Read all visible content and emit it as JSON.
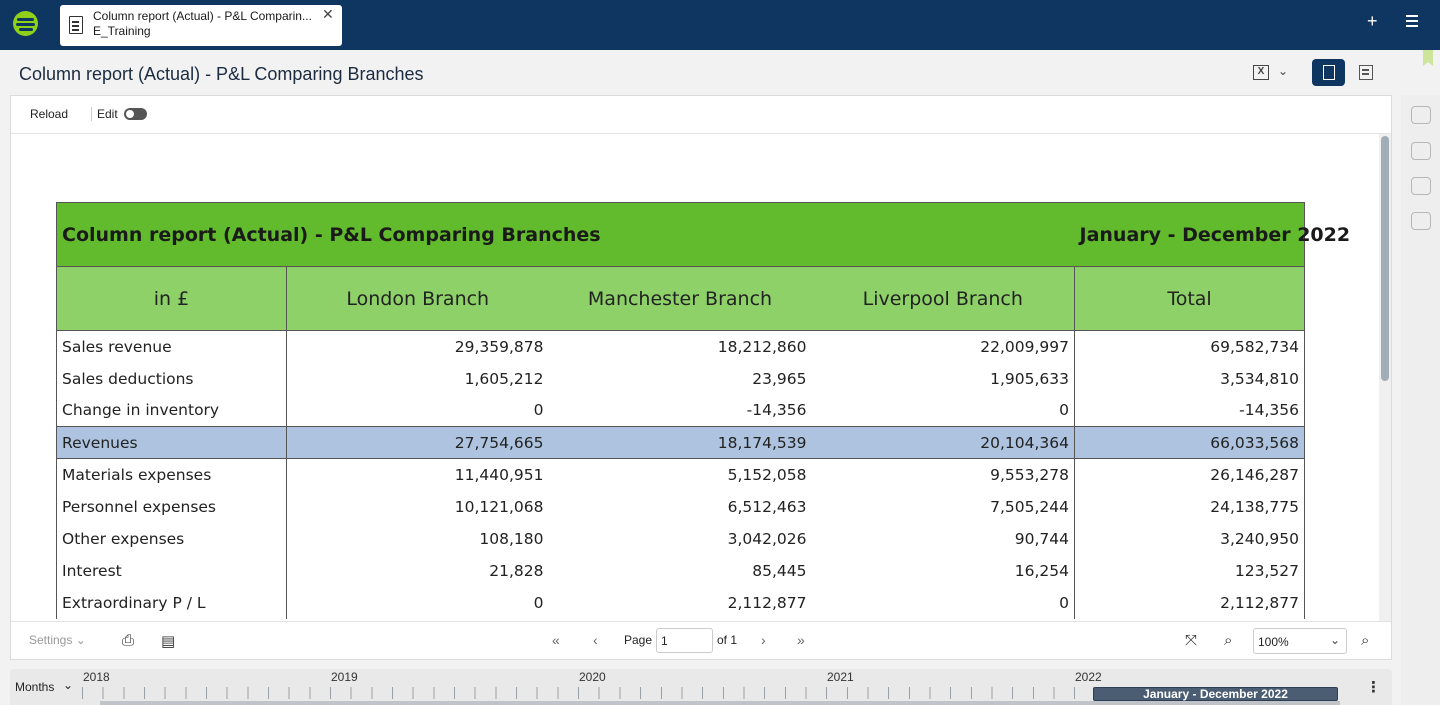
{
  "app": {
    "tab_title": "Column report (Actual) - P&L Comparin...",
    "tab_subtitle": "E_Training",
    "tab_close": "✕",
    "add_label": "+"
  },
  "header": {
    "page_title": "Column report (Actual) - P&L Comparing Branches",
    "excel_glyph": "X",
    "chevron": "⌄"
  },
  "toolbar": {
    "reload_label": "Reload",
    "edit_label": "Edit",
    "edit_toggle_on": false
  },
  "report": {
    "title": "Column report (Actual) - P&L Comparing Branches",
    "period": "January - December 2022",
    "columns": [
      "in £",
      "London Branch",
      "Manchester Branch",
      "Liverpool Branch",
      "Total"
    ],
    "rows": [
      {
        "label": "Sales revenue",
        "values": [
          "29,359,878",
          "18,212,860",
          "22,009,997",
          "69,582,734"
        ],
        "highlight": false
      },
      {
        "label": "Sales deductions",
        "values": [
          "1,605,212",
          "23,965",
          "1,905,633",
          "3,534,810"
        ],
        "highlight": false
      },
      {
        "label": "Change in inventory",
        "values": [
          "0",
          "-14,356",
          "0",
          "-14,356"
        ],
        "highlight": false
      },
      {
        "label": "Revenues",
        "values": [
          "27,754,665",
          "18,174,539",
          "20,104,364",
          "66,033,568"
        ],
        "highlight": true
      },
      {
        "label": "Materials expenses",
        "values": [
          "11,440,951",
          "5,152,058",
          "9,553,278",
          "26,146,287"
        ],
        "highlight": false
      },
      {
        "label": "Personnel expenses",
        "values": [
          "10,121,068",
          "6,512,463",
          "7,505,244",
          "24,138,775"
        ],
        "highlight": false
      },
      {
        "label": "Other expenses",
        "values": [
          "108,180",
          "3,042,026",
          "90,744",
          "3,240,950"
        ],
        "highlight": false
      },
      {
        "label": "Interest",
        "values": [
          "21,828",
          "85,445",
          "16,254",
          "123,527"
        ],
        "highlight": false
      },
      {
        "label": "Extraordinary P / L",
        "values": [
          "0",
          "2,112,877",
          "0",
          "2,112,877"
        ],
        "highlight": false
      }
    ],
    "highlight_color": "#adc3df",
    "title_color": "#62bb2c",
    "header_color": "#8ed168"
  },
  "footer": {
    "settings_label": "Settings",
    "page_label": "Page",
    "page_value": "1",
    "of_label": "of 1",
    "zoom_value": "100%",
    "first_glyph": "«",
    "prev_glyph": "‹",
    "next_glyph": "›",
    "last_glyph": "»"
  },
  "timeline": {
    "granularity": "Months",
    "years": [
      "2018",
      "2019",
      "2020",
      "2021",
      "2022"
    ],
    "selected_range": "January - December 2022",
    "kebab": "⋮"
  },
  "colors": {
    "topbar": "#0f3661",
    "brand_green": "#8fd118"
  }
}
